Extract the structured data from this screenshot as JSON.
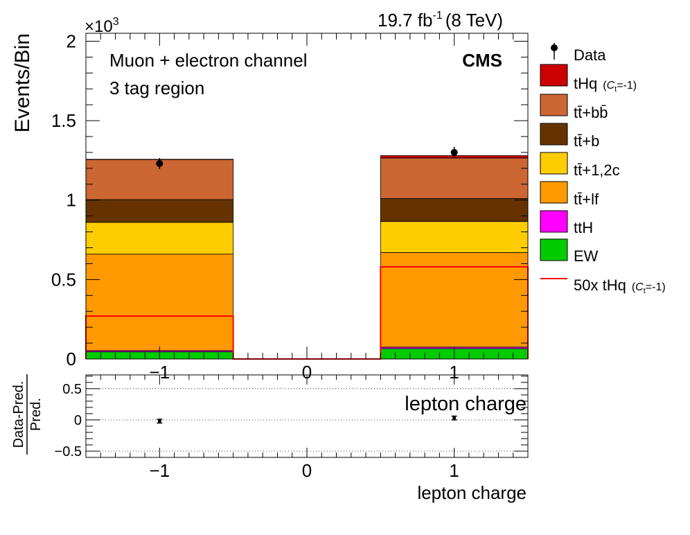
{
  "header": {
    "lumi_value": "19.7 fb",
    "lumi_exponent": "-1",
    "energy": "(8 TeV)",
    "multiplier_prefix": "×10",
    "multiplier_exponent": "3"
  },
  "annotations": {
    "channel": "Muon + electron channel",
    "region": "3 tag region",
    "experiment": "CMS"
  },
  "legend": {
    "data": "Data",
    "thq": "tHq",
    "thq_note_open": "(",
    "thq_note_c": "C",
    "thq_note_sub": "t",
    "thq_note_close": "=-1)",
    "ttbb": "tt̄+bb̄",
    "ttb": "tt̄+b",
    "ttcc": "tt̄+1,2c",
    "ttlf": "tt̄+lf",
    "tth": "ttH",
    "ew": "EW",
    "thq50": "50x tHq"
  },
  "colors": {
    "thq": "#cc0000",
    "ttbb": "#cc6633",
    "ttb": "#663300",
    "ttcc": "#ffcc00",
    "ttlf": "#ff9900",
    "tth": "#ff00ff",
    "ew": "#00cc00",
    "thq50_line": "#ff0000",
    "data": "#000000"
  },
  "chart_data": [
    {
      "type": "bar",
      "stacked": true,
      "bin_edges": [
        -1.5,
        -0.5,
        0.5,
        1.5
      ],
      "x_ticks": [
        -1,
        0,
        1
      ],
      "x_tick_labels": [
        "−1",
        "0",
        "1"
      ],
      "y_ticks": [
        0,
        0.5,
        1,
        1.5,
        2
      ],
      "y_tick_labels": [
        "0",
        "0.5",
        "1",
        "1.5",
        "2"
      ],
      "ylabel": "Events/Bin",
      "y_multiplier": "×10^3",
      "ylim": [
        0,
        2.05
      ],
      "series": [
        {
          "key": "ew",
          "name": "EW",
          "values": [
            0.045,
            0,
            0.065
          ]
        },
        {
          "key": "tth",
          "name": "ttH",
          "values": [
            0.008,
            0,
            0.01
          ]
        },
        {
          "key": "ttlf",
          "name": "tt̄+lf",
          "values": [
            0.607,
            0,
            0.595
          ]
        },
        {
          "key": "ttcc",
          "name": "tt̄+1,2c",
          "values": [
            0.2,
            0,
            0.195
          ]
        },
        {
          "key": "ttb",
          "name": "tt̄+b",
          "values": [
            0.143,
            0,
            0.145
          ]
        },
        {
          "key": "ttbb",
          "name": "tt̄+bb̄",
          "values": [
            0.252,
            0,
            0.255
          ]
        },
        {
          "key": "thq",
          "name": "tHq (Ct=-1)",
          "values": [
            0.002,
            0,
            0.015
          ]
        }
      ],
      "overlay_line": {
        "name": "50x tHq (Ct=-1)",
        "values": [
          0.27,
          0.0,
          0.58
        ]
      },
      "data_points": {
        "x": [
          -1,
          1
        ],
        "y": [
          1.23,
          1.3
        ],
        "err": [
          0.035,
          0.036
        ]
      }
    },
    {
      "type": "scatter",
      "ylabel_top": "Data-Pred.",
      "ylabel_bottom": "Pred.",
      "xlabel": "lepton charge",
      "inner_label": "lepton charge",
      "x": [
        -1,
        1
      ],
      "y": [
        -0.02,
        0.03
      ],
      "err": [
        0.03,
        0.03
      ],
      "ylim": [
        -0.6,
        0.72
      ],
      "y_ticks": [
        -0.5,
        0,
        0.5
      ],
      "y_tick_labels": [
        "−0.5",
        "0",
        "0.5"
      ],
      "x_ticks": [
        -1,
        0,
        1
      ],
      "x_tick_labels": [
        "−1",
        "0",
        "1"
      ],
      "gridlines": [
        -0.5,
        0,
        0.5
      ]
    }
  ]
}
